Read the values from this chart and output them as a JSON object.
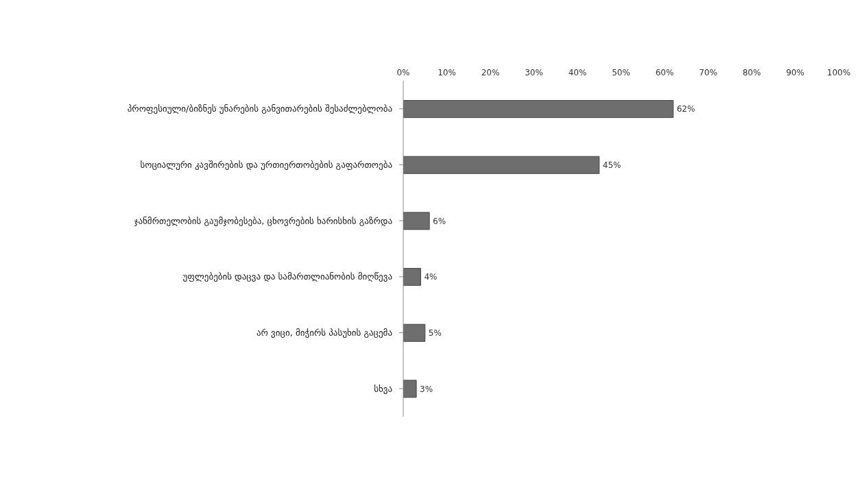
{
  "chart_data": {
    "type": "bar",
    "orientation": "horizontal",
    "categories": [
      "პროფესიული/ბიზნეს უნარების განვითარების შესაძლებლობა",
      "სოციალური კავშირების და ურთიერთობების გაფართოება",
      "ჯანმრთელობის გაუმჯობესება, ცხოვრების ხარისხის გაზრდა",
      "უფლებების დაცვა და სამართლიანობის მიღწევა",
      "არ ვიცი, მიჭირს პასუხის გაცემა",
      "სხვა"
    ],
    "values": [
      62,
      45,
      6,
      4,
      5,
      3
    ],
    "value_labels": [
      "62%",
      "45%",
      "6%",
      "4%",
      "5%",
      "3%"
    ],
    "color": "#6e6e6e",
    "xlim": [
      0,
      100
    ],
    "xticks": [
      {
        "value": 0,
        "label": "0%"
      },
      {
        "value": 10,
        "label": "10%"
      },
      {
        "value": 20,
        "label": "20%"
      },
      {
        "value": 30,
        "label": "30%"
      },
      {
        "value": 40,
        "label": "40%"
      },
      {
        "value": 50,
        "label": "50%"
      },
      {
        "value": 60,
        "label": "60%"
      },
      {
        "value": 70,
        "label": "70%"
      },
      {
        "value": 80,
        "label": "80%"
      },
      {
        "value": 90,
        "label": "90%"
      },
      {
        "value": 100,
        "label": "100%"
      }
    ],
    "grid": false,
    "legend": false
  }
}
